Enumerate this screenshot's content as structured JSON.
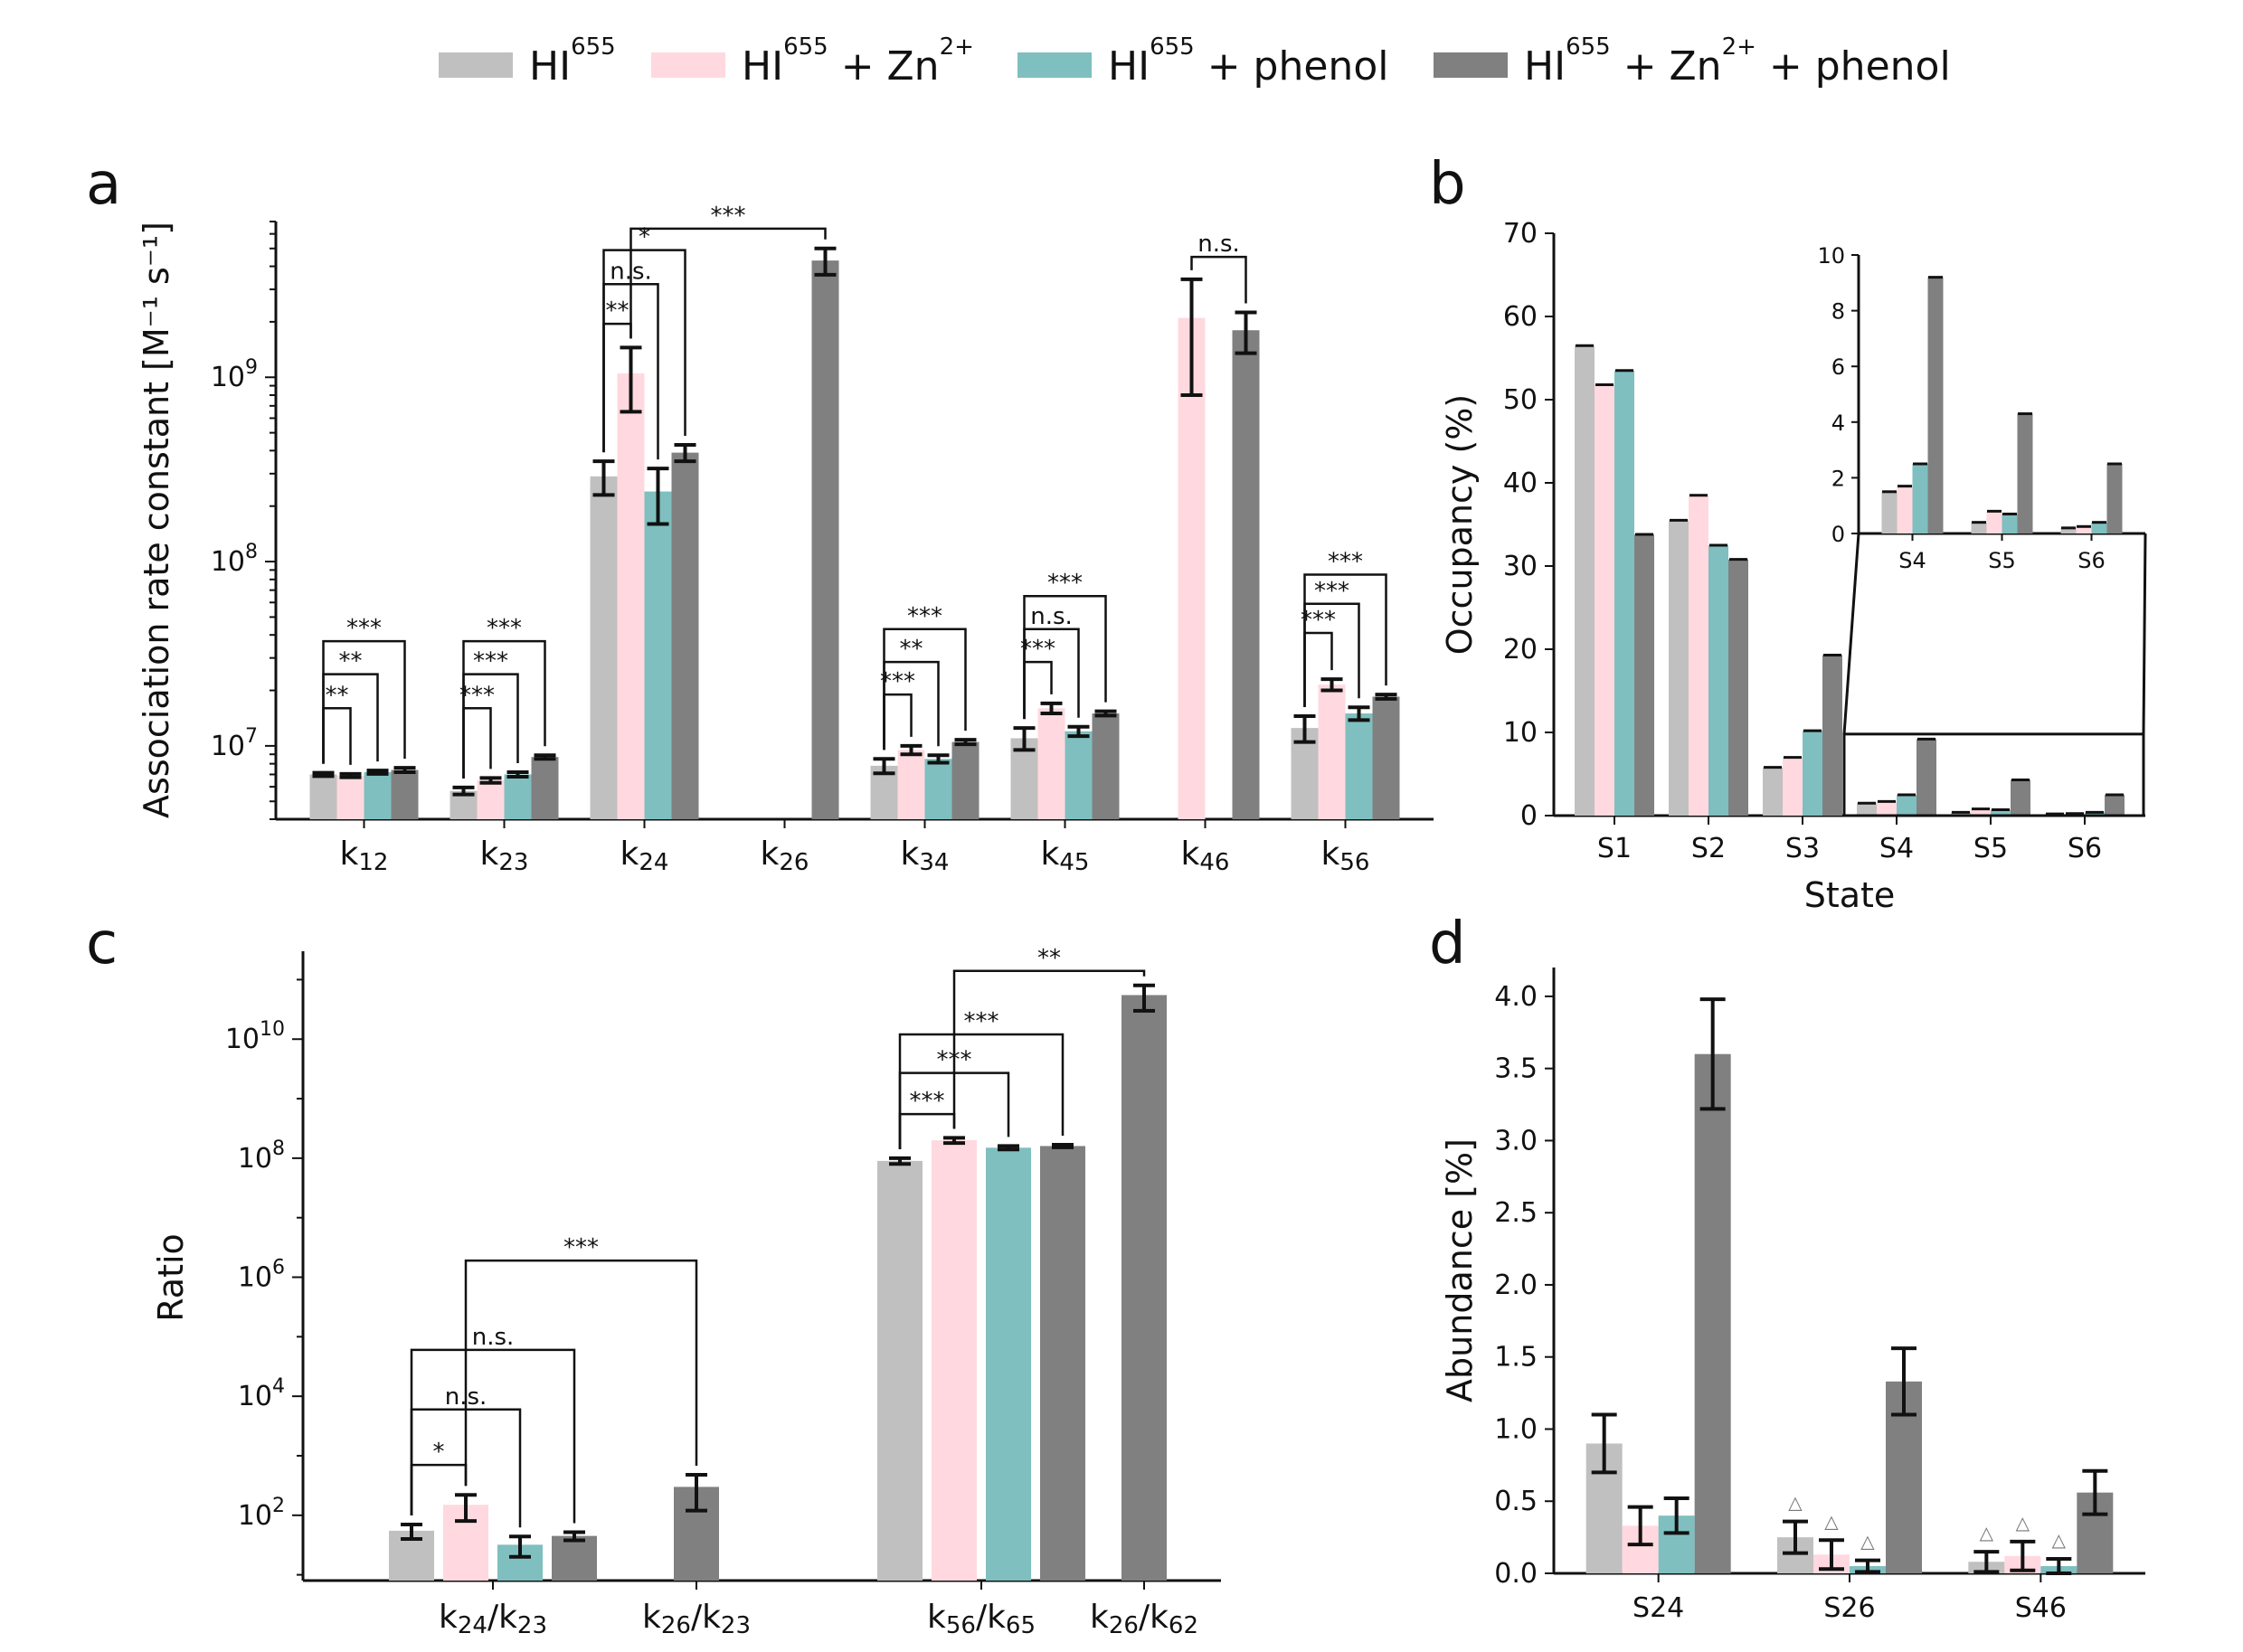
{
  "legend": [
    {
      "text": "HI",
      "sup": "655",
      "suffix_parts": [],
      "color": "#c0c0c0"
    },
    {
      "text": "HI",
      "sup": "655",
      "suffix_parts": [
        " + Zn",
        "2+",
        ""
      ],
      "color": "#ffd9df"
    },
    {
      "text": "HI",
      "sup": "655",
      "suffix_parts": [
        " + phenol"
      ],
      "color": "#7fbfbf"
    },
    {
      "text": "HI",
      "sup": "655",
      "suffix_parts": [
        " + Zn",
        "2+",
        " + phenol"
      ],
      "color": "#808080"
    }
  ],
  "colors": {
    "hi655": "#c0c0c0",
    "zn": "#ffd9df",
    "phenol": "#7fbfbf",
    "zn_phenol": "#808080",
    "error": "#111111"
  },
  "chart_data": [
    {
      "panel": "a",
      "type": "bar",
      "yscale": "log",
      "ylabel": "Association rate constant [M⁻¹ s⁻¹]",
      "ylim": [
        4000000,
        7000000000
      ],
      "yticks": [
        {
          "v": 10000000,
          "b": "10",
          "e": "7"
        },
        {
          "v": 100000000,
          "b": "10",
          "e": "8"
        },
        {
          "v": 1000000000,
          "b": "10",
          "e": "9"
        }
      ],
      "categories": [
        {
          "main": "k",
          "sub": "12"
        },
        {
          "main": "k",
          "sub": "23"
        },
        {
          "main": "k",
          "sub": "24"
        },
        {
          "main": "k",
          "sub": "26"
        },
        {
          "main": "k",
          "sub": "34"
        },
        {
          "main": "k",
          "sub": "45"
        },
        {
          "main": "k",
          "sub": "46"
        },
        {
          "main": "k",
          "sub": "56"
        }
      ],
      "series": [
        {
          "values": [
            7000000,
            5700000,
            290000000,
            null,
            7800000,
            11000000,
            null,
            12500000
          ],
          "err": [
            150000,
            250000,
            60000000,
            null,
            700000,
            1500000,
            null,
            2000000
          ]
        },
        {
          "values": [
            6900000,
            6500000,
            1050000000,
            null,
            9500000,
            16000000,
            2100000000,
            21500000
          ],
          "err": [
            150000,
            200000,
            400000000,
            null,
            500000,
            1000000,
            1300000000,
            1500000
          ]
        },
        {
          "values": [
            7200000,
            7000000,
            240000000,
            null,
            8500000,
            12000000,
            null,
            15000000
          ],
          "err": [
            150000,
            200000,
            80000000,
            null,
            400000,
            700000,
            null,
            1200000
          ]
        },
        {
          "values": [
            7400000,
            8700000,
            390000000,
            4300000000,
            10500000,
            15000000,
            1800000000,
            18500000
          ],
          "err": [
            200000,
            200000,
            40000000,
            700000000,
            300000,
            400000,
            450000000,
            500000
          ]
        }
      ],
      "brackets": [
        {
          "x1": [
            0,
            0
          ],
          "x2": [
            0,
            1
          ],
          "text": "**",
          "y": 16000000
        },
        {
          "x1": [
            0,
            0
          ],
          "x2": [
            0,
            2
          ],
          "text": "**",
          "y": 24500000
        },
        {
          "x1": [
            0,
            0
          ],
          "x2": [
            0,
            3
          ],
          "text": "***",
          "y": 37000000
        },
        {
          "x1": [
            1,
            0
          ],
          "x2": [
            1,
            1
          ],
          "text": "***",
          "y": 16000000
        },
        {
          "x1": [
            1,
            0
          ],
          "x2": [
            1,
            2
          ],
          "text": "***",
          "y": 24500000
        },
        {
          "x1": [
            1,
            0
          ],
          "x2": [
            1,
            3
          ],
          "text": "***",
          "y": 37000000
        },
        {
          "x1": [
            2,
            0
          ],
          "x2": [
            2,
            1
          ],
          "text": "**",
          "y": 1950000000
        },
        {
          "x1": [
            2,
            0
          ],
          "x2": [
            2,
            2
          ],
          "text": "n.s.",
          "y": 3200000000
        },
        {
          "x1": [
            2,
            0
          ],
          "x2": [
            2,
            3
          ],
          "text": "*",
          "y": 4900000000
        },
        {
          "x1": [
            2,
            1
          ],
          "x2": [
            3,
            3
          ],
          "text": "***",
          "y": 6400000000
        },
        {
          "x1": [
            4,
            0
          ],
          "x2": [
            4,
            1
          ],
          "text": "***",
          "y": 19000000
        },
        {
          "x1": [
            4,
            0
          ],
          "x2": [
            4,
            2
          ],
          "text": "**",
          "y": 28500000
        },
        {
          "x1": [
            4,
            0
          ],
          "x2": [
            4,
            3
          ],
          "text": "***",
          "y": 43000000
        },
        {
          "x1": [
            5,
            0
          ],
          "x2": [
            5,
            1
          ],
          "text": "***",
          "y": 28500000
        },
        {
          "x1": [
            5,
            0
          ],
          "x2": [
            5,
            2
          ],
          "text": "n.s.",
          "y": 43000000
        },
        {
          "x1": [
            5,
            0
          ],
          "x2": [
            5,
            3
          ],
          "text": "***",
          "y": 65000000
        },
        {
          "x1": [
            6,
            1
          ],
          "x2": [
            6,
            3
          ],
          "text": "n.s.",
          "y": 4500000000
        },
        {
          "x1": [
            7,
            0
          ],
          "x2": [
            7,
            1
          ],
          "text": "***",
          "y": 41000000
        },
        {
          "x1": [
            7,
            0
          ],
          "x2": [
            7,
            2
          ],
          "text": "***",
          "y": 59000000
        },
        {
          "x1": [
            7,
            0
          ],
          "x2": [
            7,
            3
          ],
          "text": "***",
          "y": 85000000
        }
      ]
    },
    {
      "panel": "b",
      "type": "bar",
      "ylabel": "Occupancy (%)",
      "xlabel": "State",
      "ylim": [
        0,
        70
      ],
      "yticks": [
        0,
        10,
        20,
        30,
        40,
        50,
        60,
        70
      ],
      "categories": [
        "S1",
        "S2",
        "S3",
        "S4",
        "S5",
        "S6"
      ],
      "series": [
        {
          "values": [
            56.5,
            35.5,
            5.8,
            1.5,
            0.4,
            0.2
          ]
        },
        {
          "values": [
            51.8,
            38.5,
            7.0,
            1.7,
            0.8,
            0.25
          ]
        },
        {
          "values": [
            53.5,
            32.5,
            10.2,
            2.5,
            0.7,
            0.4
          ]
        },
        {
          "values": [
            33.8,
            30.8,
            19.3,
            9.2,
            4.3,
            2.5
          ]
        }
      ],
      "inset": {
        "ylim": [
          0,
          10
        ],
        "yticks": [
          0,
          2,
          4,
          6,
          8,
          10
        ],
        "categories": [
          "S4",
          "S5",
          "S6"
        ]
      }
    },
    {
      "panel": "c",
      "type": "bar",
      "yscale": "log",
      "ylabel": "Ratio",
      "ylim": [
        8,
        300000000000
      ],
      "yticks": [
        {
          "v": 100,
          "b": "10",
          "e": "2"
        },
        {
          "v": 10000,
          "b": "10",
          "e": "4"
        },
        {
          "v": 1000000,
          "b": "10",
          "e": "6"
        },
        {
          "v": 100000000,
          "b": "10",
          "e": "8"
        },
        {
          "v": 10000000000,
          "b": "10",
          "e": "10"
        }
      ],
      "categories": [
        {
          "n1": "24",
          "n2": "23"
        },
        {
          "n1": "26",
          "n2": "23"
        },
        {
          "n1": "56",
          "n2": "65"
        },
        {
          "n1": "26",
          "n2": "62"
        }
      ],
      "series": [
        {
          "values": [
            55,
            null,
            90000000,
            null
          ],
          "err": [
            15,
            null,
            10000000,
            null
          ]
        },
        {
          "values": [
            150,
            null,
            200000000,
            null
          ],
          "err": [
            70,
            null,
            20000000,
            null
          ]
        },
        {
          "values": [
            32,
            null,
            150000000,
            null
          ],
          "err": [
            12,
            null,
            10000000,
            null
          ]
        },
        {
          "values": [
            45,
            300,
            160000000,
            55000000000
          ],
          "err": [
            7,
            180,
            8000000,
            25000000000
          ]
        }
      ],
      "brackets": [
        {
          "x1": [
            0,
            0
          ],
          "x2": [
            0,
            1
          ],
          "text": "*",
          "y": 700
        },
        {
          "x1": [
            0,
            0
          ],
          "x2": [
            0,
            2
          ],
          "text": "n.s.",
          "y": 6000
        },
        {
          "x1": [
            0,
            0
          ],
          "x2": [
            0,
            3
          ],
          "text": "n.s.",
          "y": 60000
        },
        {
          "x1": [
            0,
            1
          ],
          "x2": [
            1,
            3
          ],
          "text": "***",
          "y": 1900000
        },
        {
          "x1": [
            2,
            0
          ],
          "x2": [
            2,
            1
          ],
          "text": "***",
          "y": 550000000
        },
        {
          "x1": [
            2,
            0
          ],
          "x2": [
            2,
            2
          ],
          "text": "***",
          "y": 2700000000
        },
        {
          "x1": [
            2,
            0
          ],
          "x2": [
            2,
            3
          ],
          "text": "***",
          "y": 12000000000
        },
        {
          "x1": [
            2,
            1
          ],
          "x2": [
            3,
            3
          ],
          "text": "**",
          "y": 140000000000
        }
      ]
    },
    {
      "panel": "d",
      "type": "bar",
      "ylabel": "Abundance [%]",
      "ylim": [
        0,
        4.2
      ],
      "yticks": [
        "0.0",
        "0.5",
        "1.0",
        "1.5",
        "2.0",
        "2.5",
        "3.0",
        "3.5",
        "4.0"
      ],
      "categories": [
        "S24",
        "S26",
        "S46"
      ],
      "series": [
        {
          "values": [
            0.9,
            0.25,
            0.08
          ],
          "err": [
            0.2,
            0.11,
            0.07
          ]
        },
        {
          "values": [
            0.33,
            0.13,
            0.12
          ],
          "err": [
            0.13,
            0.1,
            0.1
          ]
        },
        {
          "values": [
            0.4,
            0.05,
            0.05
          ],
          "err": [
            0.12,
            0.04,
            0.05
          ]
        },
        {
          "values": [
            3.6,
            1.33,
            0.56
          ],
          "err": [
            0.38,
            0.23,
            0.15
          ]
        }
      ],
      "markers": [
        [
          1,
          0
        ],
        [
          1,
          1
        ],
        [
          1,
          2
        ],
        [
          2,
          0
        ],
        [
          2,
          1
        ],
        [
          2,
          2
        ]
      ],
      "marker_symbol": "△"
    }
  ]
}
